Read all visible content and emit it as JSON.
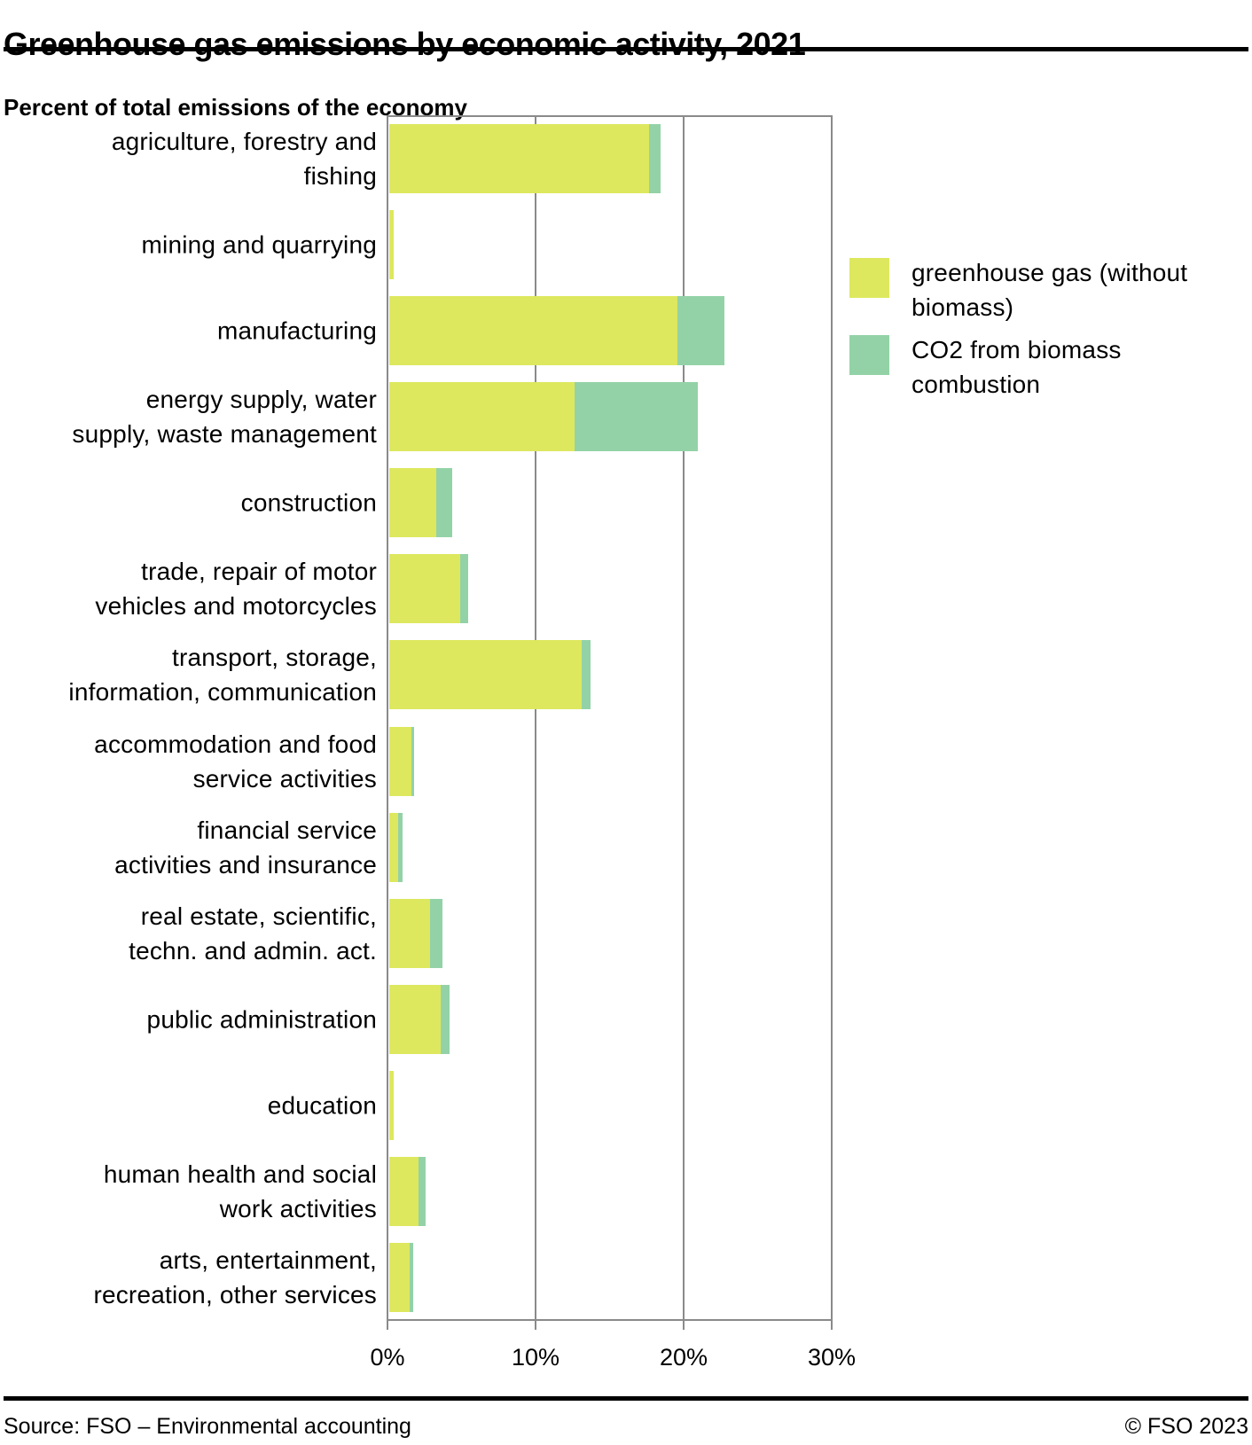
{
  "title": "Greenhouse gas emissions by economic activity, 2021",
  "subtitle": "Percent of total emissions of the economy",
  "footer": {
    "source": "Source: FSO – Environmental accounting",
    "copyright": "© FSO 2023"
  },
  "colors": {
    "ghg": "#dde85e",
    "biomass": "#93d2a7",
    "grid": "#8a8a8a",
    "text": "#000000"
  },
  "chart_data": {
    "type": "bar",
    "orientation": "horizontal",
    "stacked": true,
    "title": "Greenhouse gas emissions by economic activity, 2021",
    "subtitle": "Percent of total emissions of the economy",
    "unit": "percent of total emissions of the economy",
    "xlim": [
      0,
      30
    ],
    "x_ticks": [
      "0%",
      "10%",
      "20%",
      "30%"
    ],
    "x_tick_values": [
      0,
      10,
      20,
      30
    ],
    "grid": true,
    "legend_position": "right",
    "categories": [
      "agriculture, forestry and fishing",
      "mining and quarrying",
      "manufacturing",
      "energy supply, water supply, waste management",
      "construction",
      "trade, repair of motor vehicles and motorcycles",
      "transport, storage, information, communication",
      "accommodation and food service activities",
      "financial service activities and insurance",
      "real estate, scientific, techn. and admin. act.",
      "public administration",
      "education",
      "human health and social work activities",
      "arts, entertainment, recreation, other services"
    ],
    "categories_wrapped": [
      [
        "agriculture, forestry and",
        "fishing"
      ],
      [
        "mining and quarrying"
      ],
      [
        "manufacturing"
      ],
      [
        "energy supply, water",
        "supply, waste management"
      ],
      [
        "construction"
      ],
      [
        "trade, repair of motor",
        "vehicles and motorcycles"
      ],
      [
        "transport, storage,",
        "information, communication"
      ],
      [
        "accommodation and food",
        "service activities"
      ],
      [
        "financial service",
        "activities and insurance"
      ],
      [
        "real estate, scientific,",
        "techn. and admin. act."
      ],
      [
        "public administration"
      ],
      [
        "education"
      ],
      [
        "human health and social",
        "work activities"
      ],
      [
        "arts, entertainment,",
        "recreation, other services"
      ]
    ],
    "series": [
      {
        "name": "greenhouse gas (without biomass)",
        "color": "#dde85e",
        "values": [
          17.7,
          0.3,
          19.6,
          12.6,
          3.2,
          4.8,
          13.1,
          1.5,
          0.6,
          2.8,
          3.5,
          0.3,
          2.0,
          1.4
        ]
      },
      {
        "name": "CO2 from biomass combustion",
        "color": "#93d2a7",
        "values": [
          0.8,
          0.0,
          3.2,
          8.4,
          1.1,
          0.6,
          0.6,
          0.2,
          0.3,
          0.8,
          0.6,
          0.0,
          0.5,
          0.2
        ]
      }
    ]
  }
}
